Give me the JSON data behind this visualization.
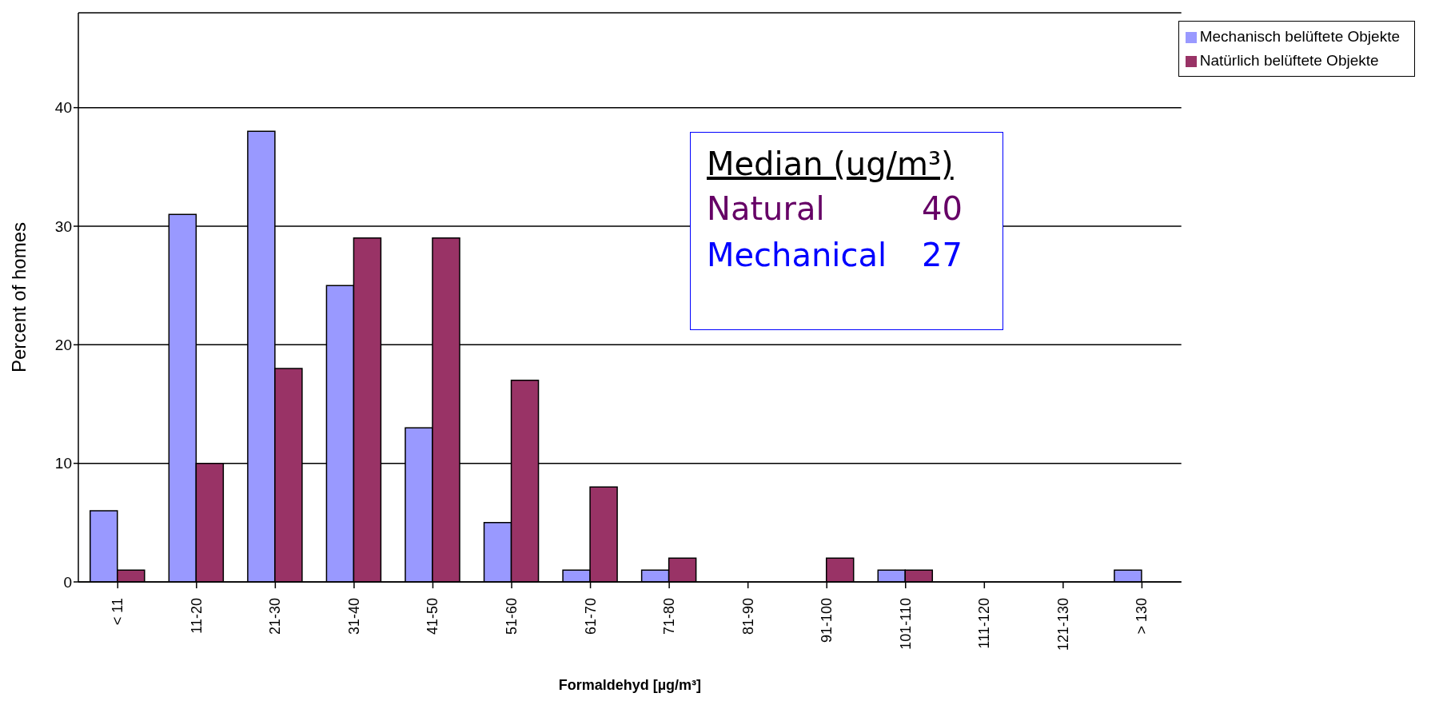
{
  "chart_data": {
    "type": "bar",
    "xlabel": "Formaldehyd [µg/m³]",
    "ylabel": "Percent of homes",
    "categories": [
      "< 11",
      "11-20",
      "21-30",
      "31-40",
      "41-50",
      "51-60",
      "61-70",
      "71-80",
      "81-90",
      "91-100",
      "101-110",
      "111-120",
      "121-130",
      "> 130"
    ],
    "series": [
      {
        "name": "Mechanisch belüftete Objekte",
        "color": "#9999ff",
        "values": [
          6,
          31,
          38,
          25,
          13,
          5,
          1,
          1,
          0,
          0,
          1,
          0,
          0,
          1
        ]
      },
      {
        "name": "Natürlich belüftete Objekte",
        "color": "#993366",
        "values": [
          1,
          10,
          18,
          29,
          29,
          17,
          8,
          2,
          0,
          2,
          1,
          0,
          0,
          0
        ]
      }
    ],
    "ylim": [
      0,
      48
    ],
    "yticks": [
      0,
      10,
      20,
      30,
      40
    ],
    "grid": "y",
    "legend": "top right",
    "annotations": [
      "Median (ug/m³)",
      "Natural",
      "40",
      "Mechanical",
      "27"
    ]
  }
}
